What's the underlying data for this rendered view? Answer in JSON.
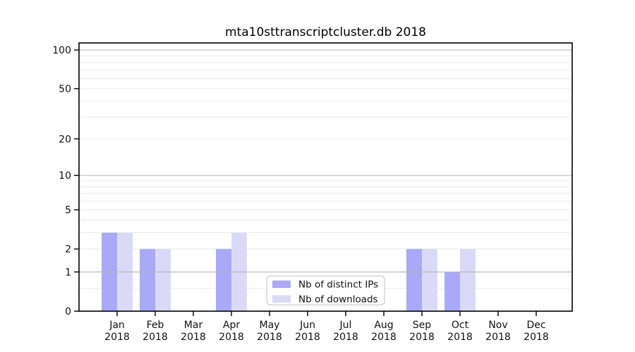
{
  "chart_data": {
    "type": "bar",
    "title": "mta10sttranscriptcluster.db 2018",
    "categories": [
      "Jan",
      "Feb",
      "Mar",
      "Apr",
      "May",
      "Jun",
      "Jul",
      "Aug",
      "Sep",
      "Oct",
      "Nov",
      "Dec"
    ],
    "x_tick_year": "2018",
    "series": [
      {
        "name": "Nb of distinct IPs",
        "color": "#a9a9f7",
        "values": [
          3,
          2,
          0,
          2,
          0,
          0,
          0,
          0,
          2,
          1,
          0,
          0
        ]
      },
      {
        "name": "Nb of downloads",
        "color": "#dadaf8",
        "values": [
          3,
          2,
          0,
          3,
          0,
          0,
          0,
          0,
          2,
          2,
          0,
          0
        ]
      }
    ],
    "yscale": "log10(value+1)",
    "ylim": [
      0,
      113
    ],
    "yticks": [
      0,
      1,
      2,
      5,
      10,
      20,
      50,
      100
    ],
    "grid": {
      "major_values": [
        1,
        10,
        100
      ],
      "minor_values": [
        0.5,
        2,
        3,
        4,
        5,
        6,
        7,
        8,
        9,
        20,
        30,
        40,
        50,
        60,
        70,
        80,
        90
      ],
      "major_color": "#b6b6b6",
      "minor_color": "#eaeaea"
    },
    "legend": {
      "position": "lower center",
      "border_color": "#cccccc",
      "background": "#ffffff"
    },
    "xlabel": "",
    "ylabel": "",
    "spine_color": "#000000",
    "text_color": "#111111"
  }
}
